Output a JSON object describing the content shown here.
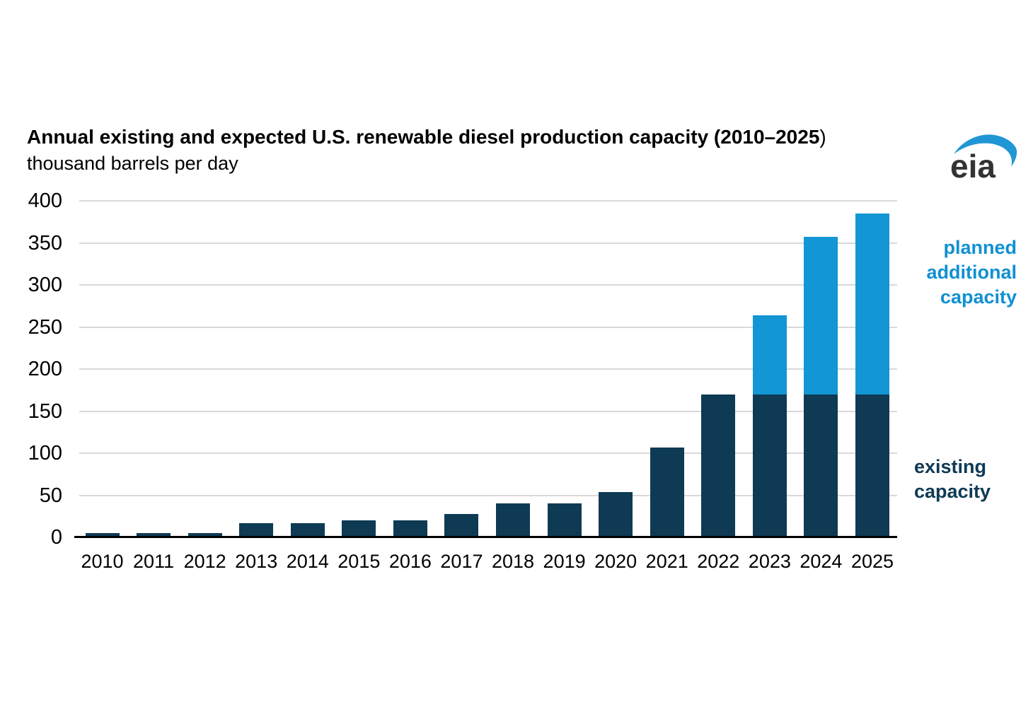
{
  "header": {
    "title_bold": "Annual existing and expected U.S. renewable diesel production capacity (2010–2025",
    "title_suffix": ")",
    "subtitle": "thousand barrels per day",
    "logo_text": "eia"
  },
  "legend": {
    "planned": "planned additional capacity",
    "existing": "existing capacity"
  },
  "colors": {
    "existing_bar": "#0e3a54",
    "planned_bar": "#1296d4",
    "gridline": "#d9d9d9",
    "axis": "#000000",
    "legend_planned_text": "#1090d2",
    "legend_existing_text": "#0e3a54",
    "logo_text": "#333333",
    "logo_swoosh": "#2196d4"
  },
  "chart_data": {
    "type": "bar",
    "stacked": true,
    "title": "Annual existing and expected U.S. renewable diesel production capacity (2010–2025)",
    "ylabel": "thousand barrels per day",
    "xlabel": "",
    "categories": [
      "2010",
      "2011",
      "2012",
      "2013",
      "2014",
      "2015",
      "2016",
      "2017",
      "2018",
      "2019",
      "2020",
      "2021",
      "2022",
      "2023",
      "2024",
      "2025"
    ],
    "series": [
      {
        "name": "existing capacity",
        "color": "#0e3a54",
        "values": [
          5,
          5,
          5,
          17,
          17,
          20,
          20,
          28,
          40,
          40,
          54,
          107,
          170,
          170,
          170,
          170
        ]
      },
      {
        "name": "planned additional capacity",
        "color": "#1296d4",
        "values": [
          0,
          0,
          0,
          0,
          0,
          0,
          0,
          0,
          0,
          0,
          0,
          0,
          0,
          94,
          187,
          215
        ]
      }
    ],
    "totals": [
      5,
      5,
      5,
      17,
      17,
      20,
      20,
      28,
      40,
      40,
      54,
      107,
      170,
      264,
      357,
      385
    ],
    "ylim": [
      0,
      400
    ],
    "yticks": [
      0,
      50,
      100,
      150,
      200,
      250,
      300,
      350,
      400
    ],
    "grid": "horizontal",
    "legend_position": "right"
  }
}
